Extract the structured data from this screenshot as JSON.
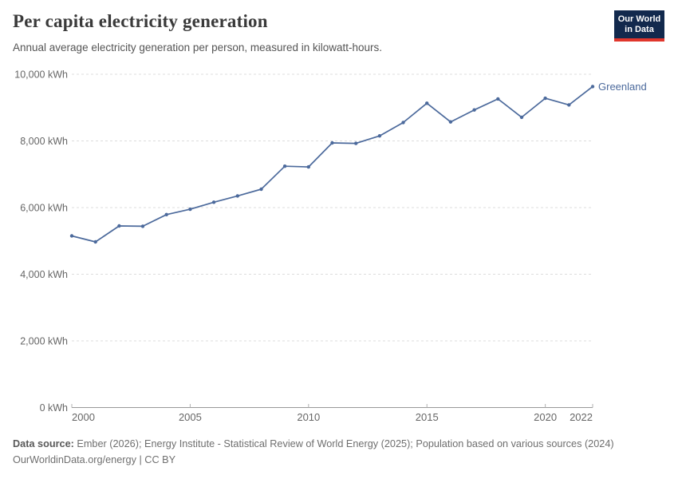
{
  "header": {
    "title": "Per capita electricity generation",
    "subtitle": "Annual average electricity generation per person, measured in kilowatt-hours.",
    "logo": {
      "line1": "Our World",
      "line2": "in Data"
    }
  },
  "chart_data": {
    "type": "line",
    "title": "Per capita electricity generation",
    "subtitle": "Annual average electricity generation per person, measured in kilowatt-hours.",
    "x": [
      2000,
      2001,
      2002,
      2003,
      2004,
      2005,
      2006,
      2007,
      2008,
      2009,
      2010,
      2011,
      2012,
      2013,
      2014,
      2015,
      2016,
      2017,
      2018,
      2019,
      2020,
      2021,
      2022
    ],
    "series": [
      {
        "name": "Greenland",
        "color": "#4c6a9c",
        "values": [
          5150,
          4970,
          5450,
          5440,
          5790,
          5950,
          6160,
          6350,
          6550,
          7240,
          7220,
          7940,
          7925,
          8150,
          8550,
          9130,
          8570,
          8930,
          9260,
          8710,
          9280,
          9080,
          9630
        ]
      }
    ],
    "x_ticks": [
      2000,
      2005,
      2010,
      2015,
      2020,
      2022
    ],
    "y_ticks": [
      {
        "value": 0,
        "label": "0 kWh"
      },
      {
        "value": 2000,
        "label": "2,000 kWh"
      },
      {
        "value": 4000,
        "label": "4,000 kWh"
      },
      {
        "value": 6000,
        "label": "6,000 kWh"
      },
      {
        "value": 8000,
        "label": "8,000 kWh"
      },
      {
        "value": 10000,
        "label": "10,000 kWh"
      }
    ],
    "xlim": [
      2000,
      2022
    ],
    "ylim": [
      0,
      10000
    ],
    "xlabel": "",
    "ylabel": "",
    "grid": "horizontal-dashed",
    "legend_position": "end-of-line label",
    "entity_label": "Greenland"
  },
  "footer": {
    "datasource_label": "Data source:",
    "datasource_value": " Ember (2026); Energy Institute - Statistical Review of World Energy (2025); Population based on various sources (2024)",
    "url": "OurWorldinData.org/energy",
    "separator": " | ",
    "license": "CC BY"
  },
  "colors": {
    "line": "#4c6a9c",
    "entity_label": "#4c6a9c",
    "gridline": "#dcdcdc",
    "axis": "#999999",
    "tick": "#b0b0b0",
    "tick_label": "#666666",
    "logo_bg": "#12294d",
    "logo_red": "#e0362c"
  }
}
